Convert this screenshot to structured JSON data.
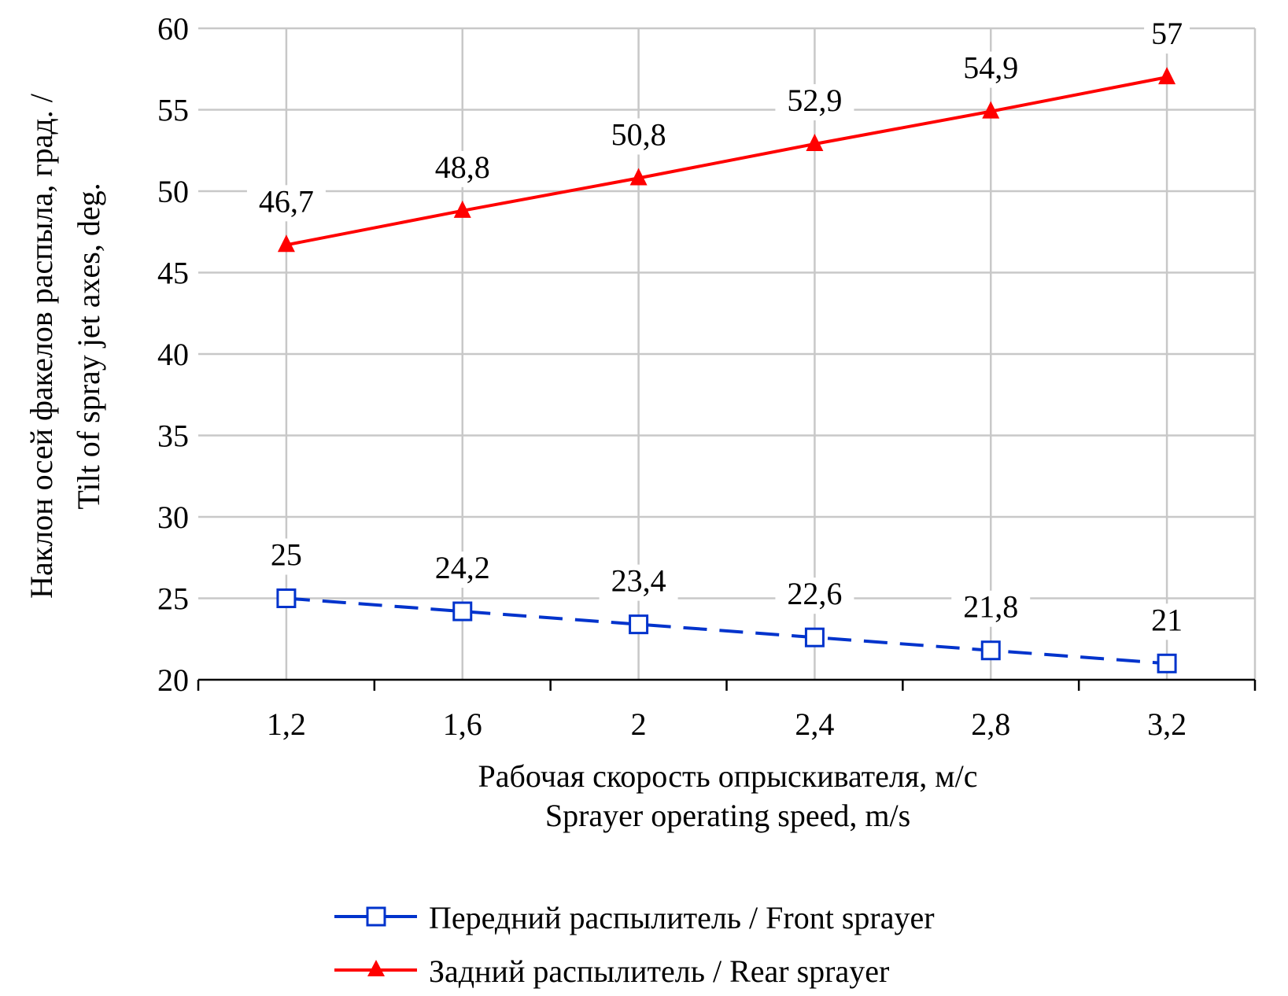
{
  "chart_data": {
    "type": "line",
    "x": [
      "1,2",
      "1,6",
      "2",
      "2,4",
      "2,8",
      "3,2"
    ],
    "x_values": [
      1.2,
      1.6,
      2.0,
      2.4,
      2.8,
      3.2
    ],
    "ylim": [
      20,
      60
    ],
    "y_ticks": [
      20,
      25,
      30,
      35,
      40,
      45,
      50,
      55,
      60
    ],
    "grid": true,
    "legend_position": "bottom",
    "xlabel_line1": "Рабочая скорость опрыскивателя, м/с",
    "xlabel_line2": "Sprayer operating speed, m/s",
    "ylabel_line1": "Наклон осей факелов распыла, град. /",
    "ylabel_line2": "Tilt of spray jet axes, deg.",
    "series": [
      {
        "name": "Передний распылитель / Front sprayer",
        "values": [
          25,
          24.2,
          23.4,
          22.6,
          21.8,
          21
        ],
        "labels": [
          "25",
          "24,2",
          "23,4",
          "22,6",
          "21,8",
          "21"
        ],
        "color": "#0033cc",
        "line_style": "dashed",
        "marker": "open-square"
      },
      {
        "name": "Задний распылитель / Rear sprayer",
        "values": [
          46.7,
          48.8,
          50.8,
          52.9,
          54.9,
          57
        ],
        "labels": [
          "46,7",
          "48,8",
          "50,8",
          "52,9",
          "54,9",
          "57"
        ],
        "color": "#ff0000",
        "line_style": "solid",
        "marker": "filled-triangle"
      }
    ]
  }
}
